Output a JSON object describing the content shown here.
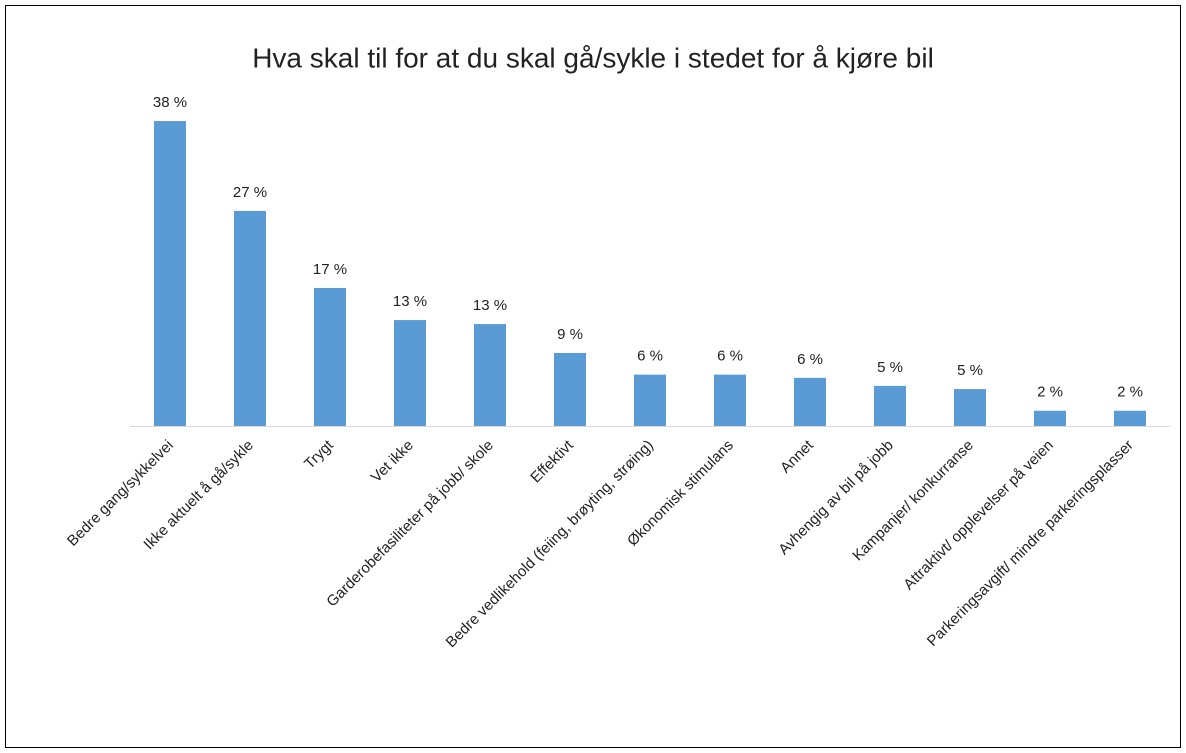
{
  "chart_data": {
    "type": "bar",
    "title": "Hva skal til for at du skal gå/sykle i stedet for å kjøre bil",
    "categories": [
      "Bedre gang/sykkelvei",
      "Ikke aktuelt å gå/sykle",
      "Trygt",
      "Vet ikke",
      "Garderobefasiliteter på jobb/ skole",
      "Effektivt",
      "Bedre vedlikehold (feiing, brøyting, strøing)",
      "Økonomisk stimulans",
      "Annet",
      "Avhengig av bil på jobb",
      "Kampanjer/ konkurranse",
      "Attraktivt/ opplevelser på veien",
      "Parkeringsavgift/ mindre parkeringsplasser"
    ],
    "values": [
      38,
      26.8,
      17.2,
      13.2,
      12.7,
      9.1,
      6.4,
      6.4,
      6.0,
      5.0,
      4.6,
      1.9,
      1.9
    ],
    "value_labels": [
      "38 %",
      "27 %",
      "17 %",
      "13 %",
      "13 %",
      "9 %",
      "6 %",
      "6 %",
      "6 %",
      "5 %",
      "5 %",
      "2 %",
      "2 %"
    ],
    "color": "#5b9bd5",
    "ylim": [
      0,
      40
    ]
  }
}
